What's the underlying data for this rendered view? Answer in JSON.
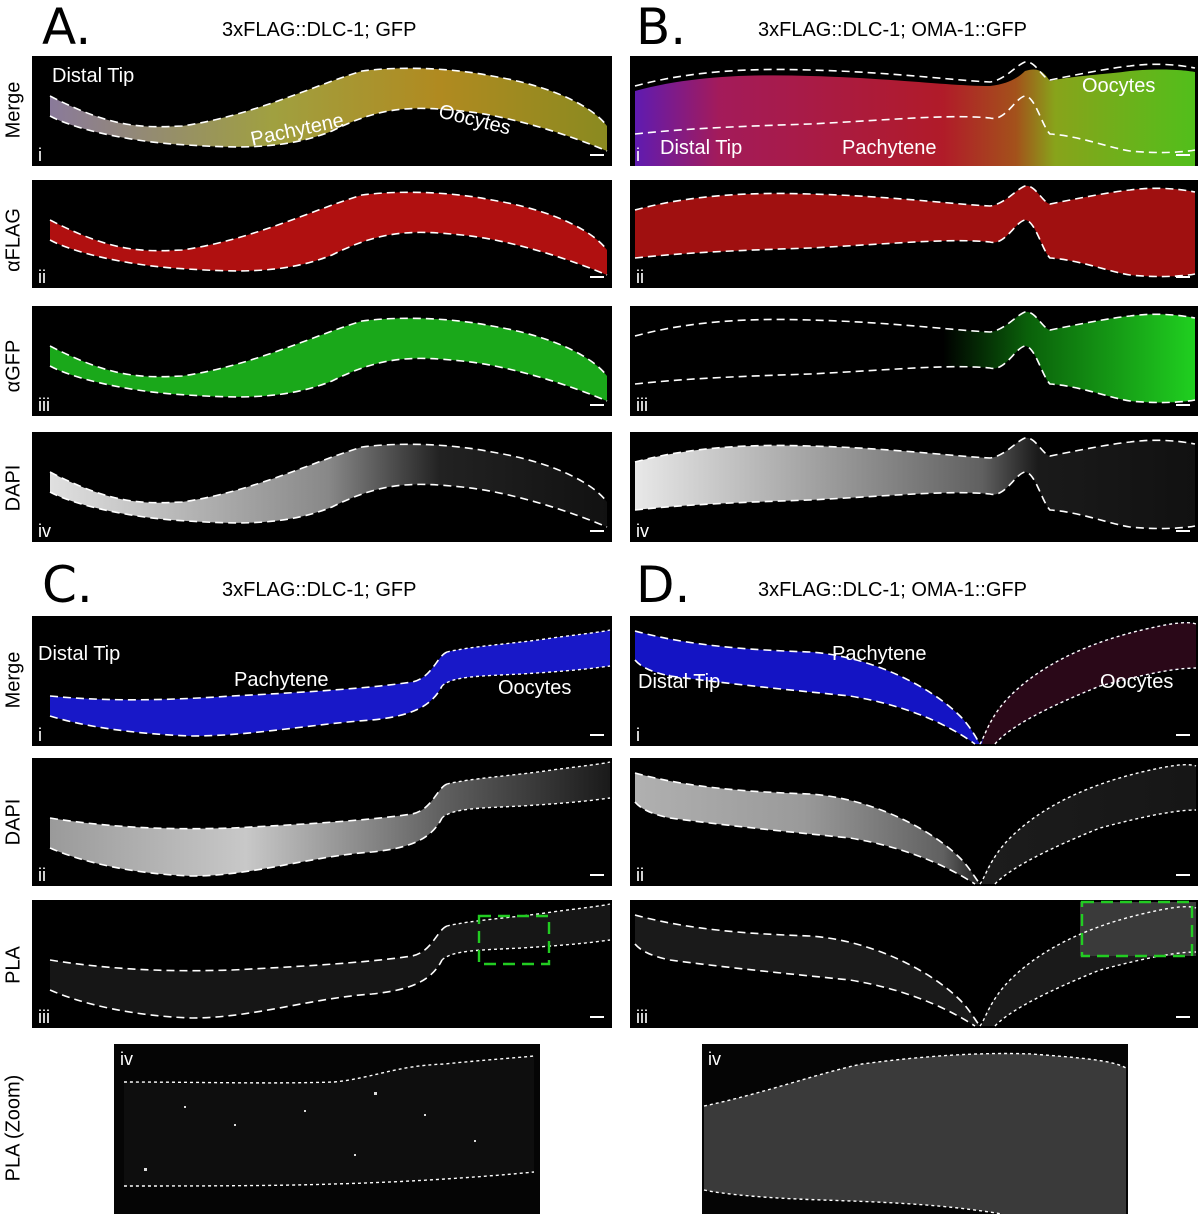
{
  "panels": {
    "A": {
      "letter": "A.",
      "title": "3xFLAG::DLC-1; GFP",
      "rows": [
        "Merge",
        "αFLAG",
        "αGFP",
        "DAPI"
      ],
      "romans": [
        "i",
        "ii",
        "iii",
        "iv"
      ],
      "annotations": {
        "distal_tip": "Distal Tip",
        "pachytene": "Pachytene",
        "oocytes": "Oocytes"
      }
    },
    "B": {
      "letter": "B.",
      "title": "3xFLAG::DLC-1; OMA-1::GFP",
      "romans": [
        "i",
        "ii",
        "iii",
        "iv"
      ],
      "annotations": {
        "distal_tip": "Distal Tip",
        "pachytene": "Pachytene",
        "oocytes": "Oocytes"
      }
    },
    "C": {
      "letter": "C.",
      "title": "3xFLAG::DLC-1; GFP",
      "rows": [
        "Merge",
        "DAPI",
        "PLA",
        "PLA (Zoom)"
      ],
      "romans": [
        "i",
        "ii",
        "iii",
        "iv"
      ],
      "annotations": {
        "distal_tip": "Distal Tip",
        "pachytene": "Pachytene",
        "oocytes": "Oocytes"
      }
    },
    "D": {
      "letter": "D.",
      "title": "3xFLAG::DLC-1; OMA-1::GFP",
      "romans": [
        "i",
        "ii",
        "iii",
        "iv"
      ],
      "annotations": {
        "distal_tip": "Distal Tip",
        "pachytene": "Pachytene",
        "oocytes": "Oocytes"
      }
    }
  },
  "colors": {
    "merge_a": "#8a8a2a",
    "flag": "#c01010",
    "gfp": "#20c020",
    "dapi": "#d0d0d0",
    "merge_c_dapi": "#1a1ad0",
    "pla_zoom_box": "#22cc22"
  }
}
